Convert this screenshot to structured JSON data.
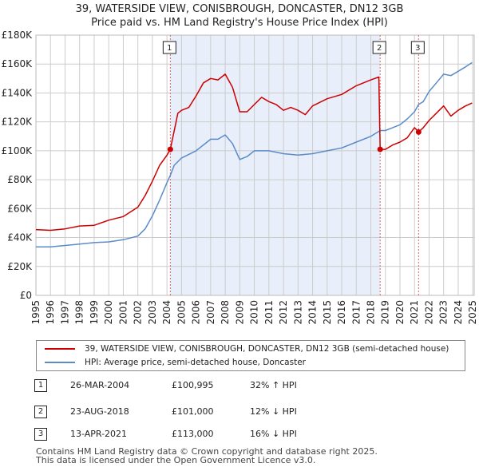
{
  "title_line1": "39, WATERSIDE VIEW, CONISBROUGH, DONCASTER, DN12 3GB",
  "title_line2": "Price paid vs. HM Land Registry's House Price Index (HPI)",
  "colors": {
    "property": "#cc0000",
    "hpi": "#5b8cc8",
    "shade": "#e8eefa",
    "grid": "#cccccc",
    "marker_line": "#e06060"
  },
  "chart_data": {
    "type": "line",
    "title": "Price paid vs. HM Land Registry's House Price Index (HPI)",
    "xlabel": "",
    "ylabel": "",
    "xlim": [
      1995,
      2025.1
    ],
    "ylim": [
      0,
      180000
    ],
    "x_ticks": [
      "1995",
      "1996",
      "1997",
      "1998",
      "1999",
      "2000",
      "2001",
      "2002",
      "2003",
      "2004",
      "2005",
      "2006",
      "2007",
      "2008",
      "2009",
      "2010",
      "2011",
      "2012",
      "2013",
      "2014",
      "2015",
      "2016",
      "2017",
      "2018",
      "2019",
      "2020",
      "2021",
      "2022",
      "2023",
      "2024",
      "2025"
    ],
    "y_ticks": [
      {
        "value": 0,
        "label": "£0"
      },
      {
        "value": 20000,
        "label": "£20K"
      },
      {
        "value": 40000,
        "label": "£40K"
      },
      {
        "value": 60000,
        "label": "£60K"
      },
      {
        "value": 80000,
        "label": "£80K"
      },
      {
        "value": 100000,
        "label": "£100K"
      },
      {
        "value": 120000,
        "label": "£120K"
      },
      {
        "value": 140000,
        "label": "£140K"
      },
      {
        "value": 160000,
        "label": "£160K"
      },
      {
        "value": 180000,
        "label": "£180K"
      }
    ],
    "shaded_range": [
      2004.23,
      2018.64
    ],
    "series": [
      {
        "name": "39, WATERSIDE VIEW, CONISBROUGH, DONCASTER, DN12 3GB (semi-detached house)",
        "color": "#cc0000",
        "points": [
          [
            1995,
            45500
          ],
          [
            1996,
            45000
          ],
          [
            1997,
            46000
          ],
          [
            1998,
            48000
          ],
          [
            1999,
            48500
          ],
          [
            2000,
            52000
          ],
          [
            2001,
            54500
          ],
          [
            2002,
            61000
          ],
          [
            2002.5,
            69000
          ],
          [
            2003,
            79000
          ],
          [
            2003.5,
            90000
          ],
          [
            2004.0,
            97000
          ],
          [
            2004.23,
            100995
          ],
          [
            2004.5,
            114000
          ],
          [
            2004.75,
            126000
          ],
          [
            2005,
            128000
          ],
          [
            2005.5,
            130000
          ],
          [
            2006,
            138000
          ],
          [
            2006.5,
            147000
          ],
          [
            2007,
            150000
          ],
          [
            2007.5,
            149000
          ],
          [
            2008,
            153000
          ],
          [
            2008.5,
            144000
          ],
          [
            2009,
            127000
          ],
          [
            2009.5,
            127000
          ],
          [
            2010,
            132000
          ],
          [
            2010.5,
            137000
          ],
          [
            2011,
            134000
          ],
          [
            2011.5,
            132000
          ],
          [
            2012,
            128000
          ],
          [
            2012.5,
            130000
          ],
          [
            2013,
            128000
          ],
          [
            2013.5,
            125000
          ],
          [
            2014,
            131000
          ],
          [
            2015,
            136000
          ],
          [
            2016,
            139000
          ],
          [
            2017,
            145000
          ],
          [
            2018,
            149000
          ],
          [
            2018.55,
            151000
          ],
          [
            2018.64,
            101000
          ],
          [
            2019,
            101000
          ],
          [
            2019.5,
            104000
          ],
          [
            2020,
            106000
          ],
          [
            2020.5,
            109000
          ],
          [
            2021.0,
            116000
          ],
          [
            2021.28,
            113000
          ],
          [
            2021.6,
            116000
          ],
          [
            2022,
            121000
          ],
          [
            2022.5,
            126000
          ],
          [
            2023,
            131000
          ],
          [
            2023.5,
            124000
          ],
          [
            2024,
            128000
          ],
          [
            2024.5,
            131000
          ],
          [
            2024.95,
            133000
          ]
        ]
      },
      {
        "name": "HPI: Average price, semi-detached house, Doncaster",
        "color": "#5b8cc8",
        "points": [
          [
            1995,
            33500
          ],
          [
            1996,
            33500
          ],
          [
            1997,
            34500
          ],
          [
            1998,
            35500
          ],
          [
            1999,
            36500
          ],
          [
            2000,
            37000
          ],
          [
            2001,
            38500
          ],
          [
            2002,
            41000
          ],
          [
            2002.5,
            46000
          ],
          [
            2003,
            55000
          ],
          [
            2003.5,
            66000
          ],
          [
            2004,
            78000
          ],
          [
            2004.23,
            83000
          ],
          [
            2004.5,
            90000
          ],
          [
            2005,
            95000
          ],
          [
            2006,
            100000
          ],
          [
            2006.5,
            104000
          ],
          [
            2007,
            108000
          ],
          [
            2007.5,
            108000
          ],
          [
            2008,
            111000
          ],
          [
            2008.5,
            105000
          ],
          [
            2009,
            94000
          ],
          [
            2009.5,
            96000
          ],
          [
            2010,
            100000
          ],
          [
            2011,
            100000
          ],
          [
            2012,
            98000
          ],
          [
            2013,
            97000
          ],
          [
            2014,
            98000
          ],
          [
            2015,
            100000
          ],
          [
            2016,
            102000
          ],
          [
            2017,
            106000
          ],
          [
            2018,
            110000
          ],
          [
            2018.64,
            114000
          ],
          [
            2019,
            114000
          ],
          [
            2019.5,
            116000
          ],
          [
            2020,
            118000
          ],
          [
            2020.5,
            122000
          ],
          [
            2021,
            127000
          ],
          [
            2021.28,
            132000
          ],
          [
            2021.6,
            134000
          ],
          [
            2022,
            141000
          ],
          [
            2022.5,
            147000
          ],
          [
            2023,
            153000
          ],
          [
            2023.5,
            152000
          ],
          [
            2024,
            155000
          ],
          [
            2024.5,
            158000
          ],
          [
            2024.95,
            161000
          ]
        ]
      }
    ],
    "transactions": [
      {
        "label": "1",
        "x": 2004.23,
        "y": 100995
      },
      {
        "label": "2",
        "x": 2018.64,
        "y": 101000
      },
      {
        "label": "3",
        "x": 2021.28,
        "y": 113000
      }
    ]
  },
  "legend": {
    "property_label": "39, WATERSIDE VIEW, CONISBROUGH, DONCASTER, DN12 3GB (semi-detached house)",
    "hpi_label": "HPI: Average price, semi-detached house, Doncaster"
  },
  "transactions_table": [
    {
      "num": "1",
      "date": "26-MAR-2004",
      "price": "£100,995",
      "hpi": "32% ↑ HPI"
    },
    {
      "num": "2",
      "date": "23-AUG-2018",
      "price": "£101,000",
      "hpi": "12% ↓ HPI"
    },
    {
      "num": "3",
      "date": "13-APR-2021",
      "price": "£113,000",
      "hpi": "16% ↓ HPI"
    }
  ],
  "footer": {
    "line1": "Contains HM Land Registry data © Crown copyright and database right 2025.",
    "line2": "This data is licensed under the Open Government Licence v3.0."
  }
}
